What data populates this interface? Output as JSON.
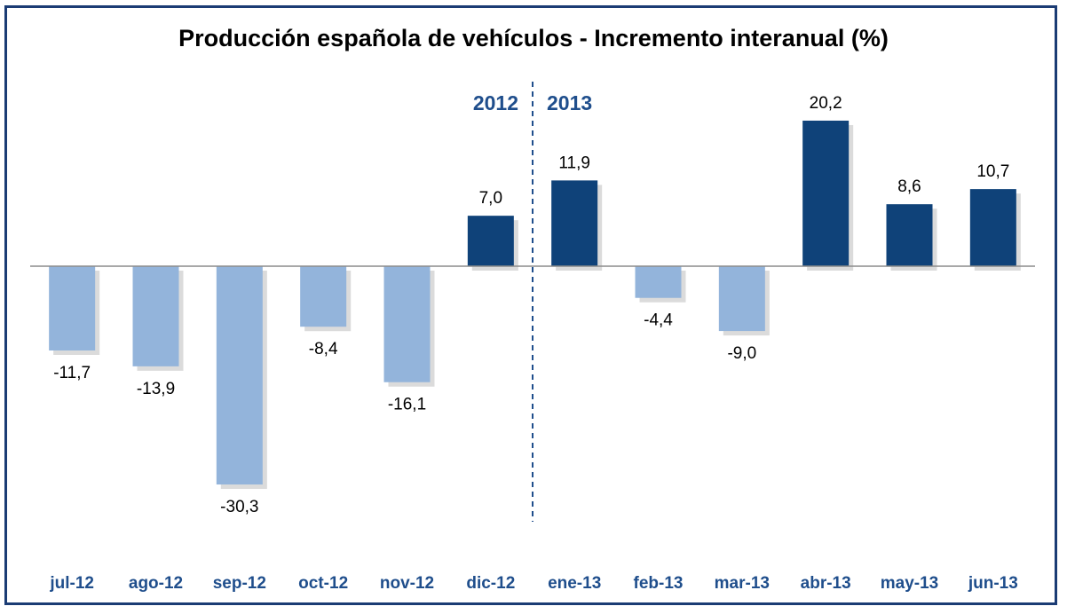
{
  "chart_data": {
    "type": "bar",
    "title": "Producción española de vehículos - Incremento interanual (%)",
    "xlabel": "",
    "ylabel": "",
    "categories": [
      "jul-12",
      "ago-12",
      "sep-12",
      "oct-12",
      "nov-12",
      "dic-12",
      "ene-13",
      "feb-13",
      "mar-13",
      "abr-13",
      "may-13",
      "jun-13"
    ],
    "values": [
      -11.7,
      -13.9,
      -30.3,
      -8.4,
      -16.1,
      7.0,
      11.9,
      -4.4,
      -9.0,
      20.2,
      8.6,
      10.7
    ],
    "data_labels": [
      "-11,7",
      "-13,9",
      "-30,3",
      "-8,4",
      "-16,1",
      "7,0",
      "11,9",
      "-4,4",
      "-9,0",
      "20,2",
      "8,6",
      "10,7"
    ],
    "ylim": [
      -36,
      28
    ],
    "grid": false,
    "year_divider": {
      "after_category": "dic-12",
      "left_label": "2012",
      "right_label": "2013"
    },
    "colors": {
      "positive": "#0f4279",
      "negative": "#93b4db",
      "shadow": "#bdbdbd",
      "axis": "#8c8c8c",
      "tick_label": "#1f4e8c",
      "year_label": "#1f4e8c",
      "divider": "#1f4e8c",
      "frame": "#1b3c74"
    }
  }
}
